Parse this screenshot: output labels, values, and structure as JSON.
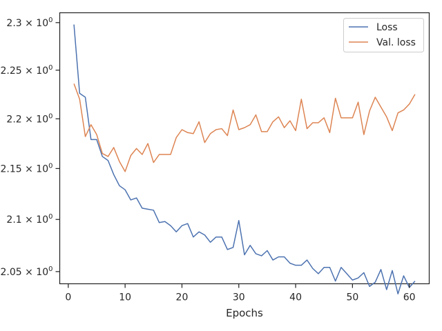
{
  "chart_data": {
    "type": "line",
    "title": "",
    "xlabel": "Epochs",
    "ylabel": "",
    "xlim": [
      -1.5,
      63.5
    ],
    "ylim": [
      2.0385,
      2.3105
    ],
    "yscale": "log",
    "xticks": [
      0,
      10,
      20,
      30,
      40,
      50,
      60
    ],
    "xtick_labels": [
      "0",
      "10",
      "20",
      "30",
      "40",
      "50",
      "60"
    ],
    "yticks": [
      2.05,
      2.1,
      2.15,
      2.2,
      2.25,
      2.3
    ],
    "ytick_labels": [
      {
        "base": "2.05",
        "exp": "0"
      },
      {
        "base": "2.1",
        "exp": "0"
      },
      {
        "base": "2.15",
        "exp": "0"
      },
      {
        "base": "2.2",
        "exp": "0"
      },
      {
        "base": "2.25",
        "exp": "0"
      },
      {
        "base": "2.3",
        "exp": "0"
      }
    ],
    "ytick_times": "× 10",
    "grid": false,
    "legend_position": "top-right",
    "x": [
      1,
      2,
      3,
      4,
      5,
      6,
      7,
      8,
      9,
      10,
      11,
      12,
      13,
      14,
      15,
      16,
      17,
      18,
      19,
      20,
      21,
      22,
      23,
      24,
      25,
      26,
      27,
      28,
      29,
      30,
      31,
      32,
      33,
      34,
      35,
      36,
      37,
      38,
      39,
      40,
      41,
      42,
      43,
      44,
      45,
      46,
      47,
      48,
      49,
      50,
      51,
      52,
      53,
      54,
      55,
      56,
      57,
      58,
      59,
      60,
      61
    ],
    "series": [
      {
        "name": "Loss",
        "color": "#4c72b0",
        "values": [
          2.298,
          2.226,
          2.222,
          2.179,
          2.179,
          2.162,
          2.158,
          2.144,
          2.133,
          2.129,
          2.119,
          2.121,
          2.111,
          2.11,
          2.109,
          2.097,
          2.098,
          2.094,
          2.088,
          2.094,
          2.096,
          2.083,
          2.088,
          2.085,
          2.078,
          2.083,
          2.083,
          2.071,
          2.073,
          2.099,
          2.066,
          2.075,
          2.067,
          2.065,
          2.07,
          2.061,
          2.064,
          2.064,
          2.058,
          2.056,
          2.056,
          2.061,
          2.053,
          2.048,
          2.054,
          2.054,
          2.041,
          2.054,
          2.048,
          2.042,
          2.044,
          2.049,
          2.036,
          2.04,
          2.052,
          2.033,
          2.051,
          2.029,
          2.046,
          2.035,
          2.041
        ]
      },
      {
        "name": "Val. loss",
        "color": "#dd8452",
        "values": [
          2.236,
          2.22,
          2.182,
          2.194,
          2.184,
          2.165,
          2.162,
          2.171,
          2.157,
          2.147,
          2.163,
          2.17,
          2.164,
          2.175,
          2.156,
          2.164,
          2.164,
          2.164,
          2.181,
          2.189,
          2.186,
          2.185,
          2.197,
          2.176,
          2.185,
          2.189,
          2.19,
          2.183,
          2.209,
          2.189,
          2.191,
          2.194,
          2.204,
          2.187,
          2.187,
          2.197,
          2.202,
          2.191,
          2.198,
          2.188,
          2.22,
          2.19,
          2.196,
          2.196,
          2.201,
          2.186,
          2.221,
          2.201,
          2.201,
          2.201,
          2.217,
          2.184,
          2.208,
          2.222,
          2.212,
          2.202,
          2.188,
          2.206,
          2.209,
          2.215,
          2.225
        ]
      }
    ]
  }
}
